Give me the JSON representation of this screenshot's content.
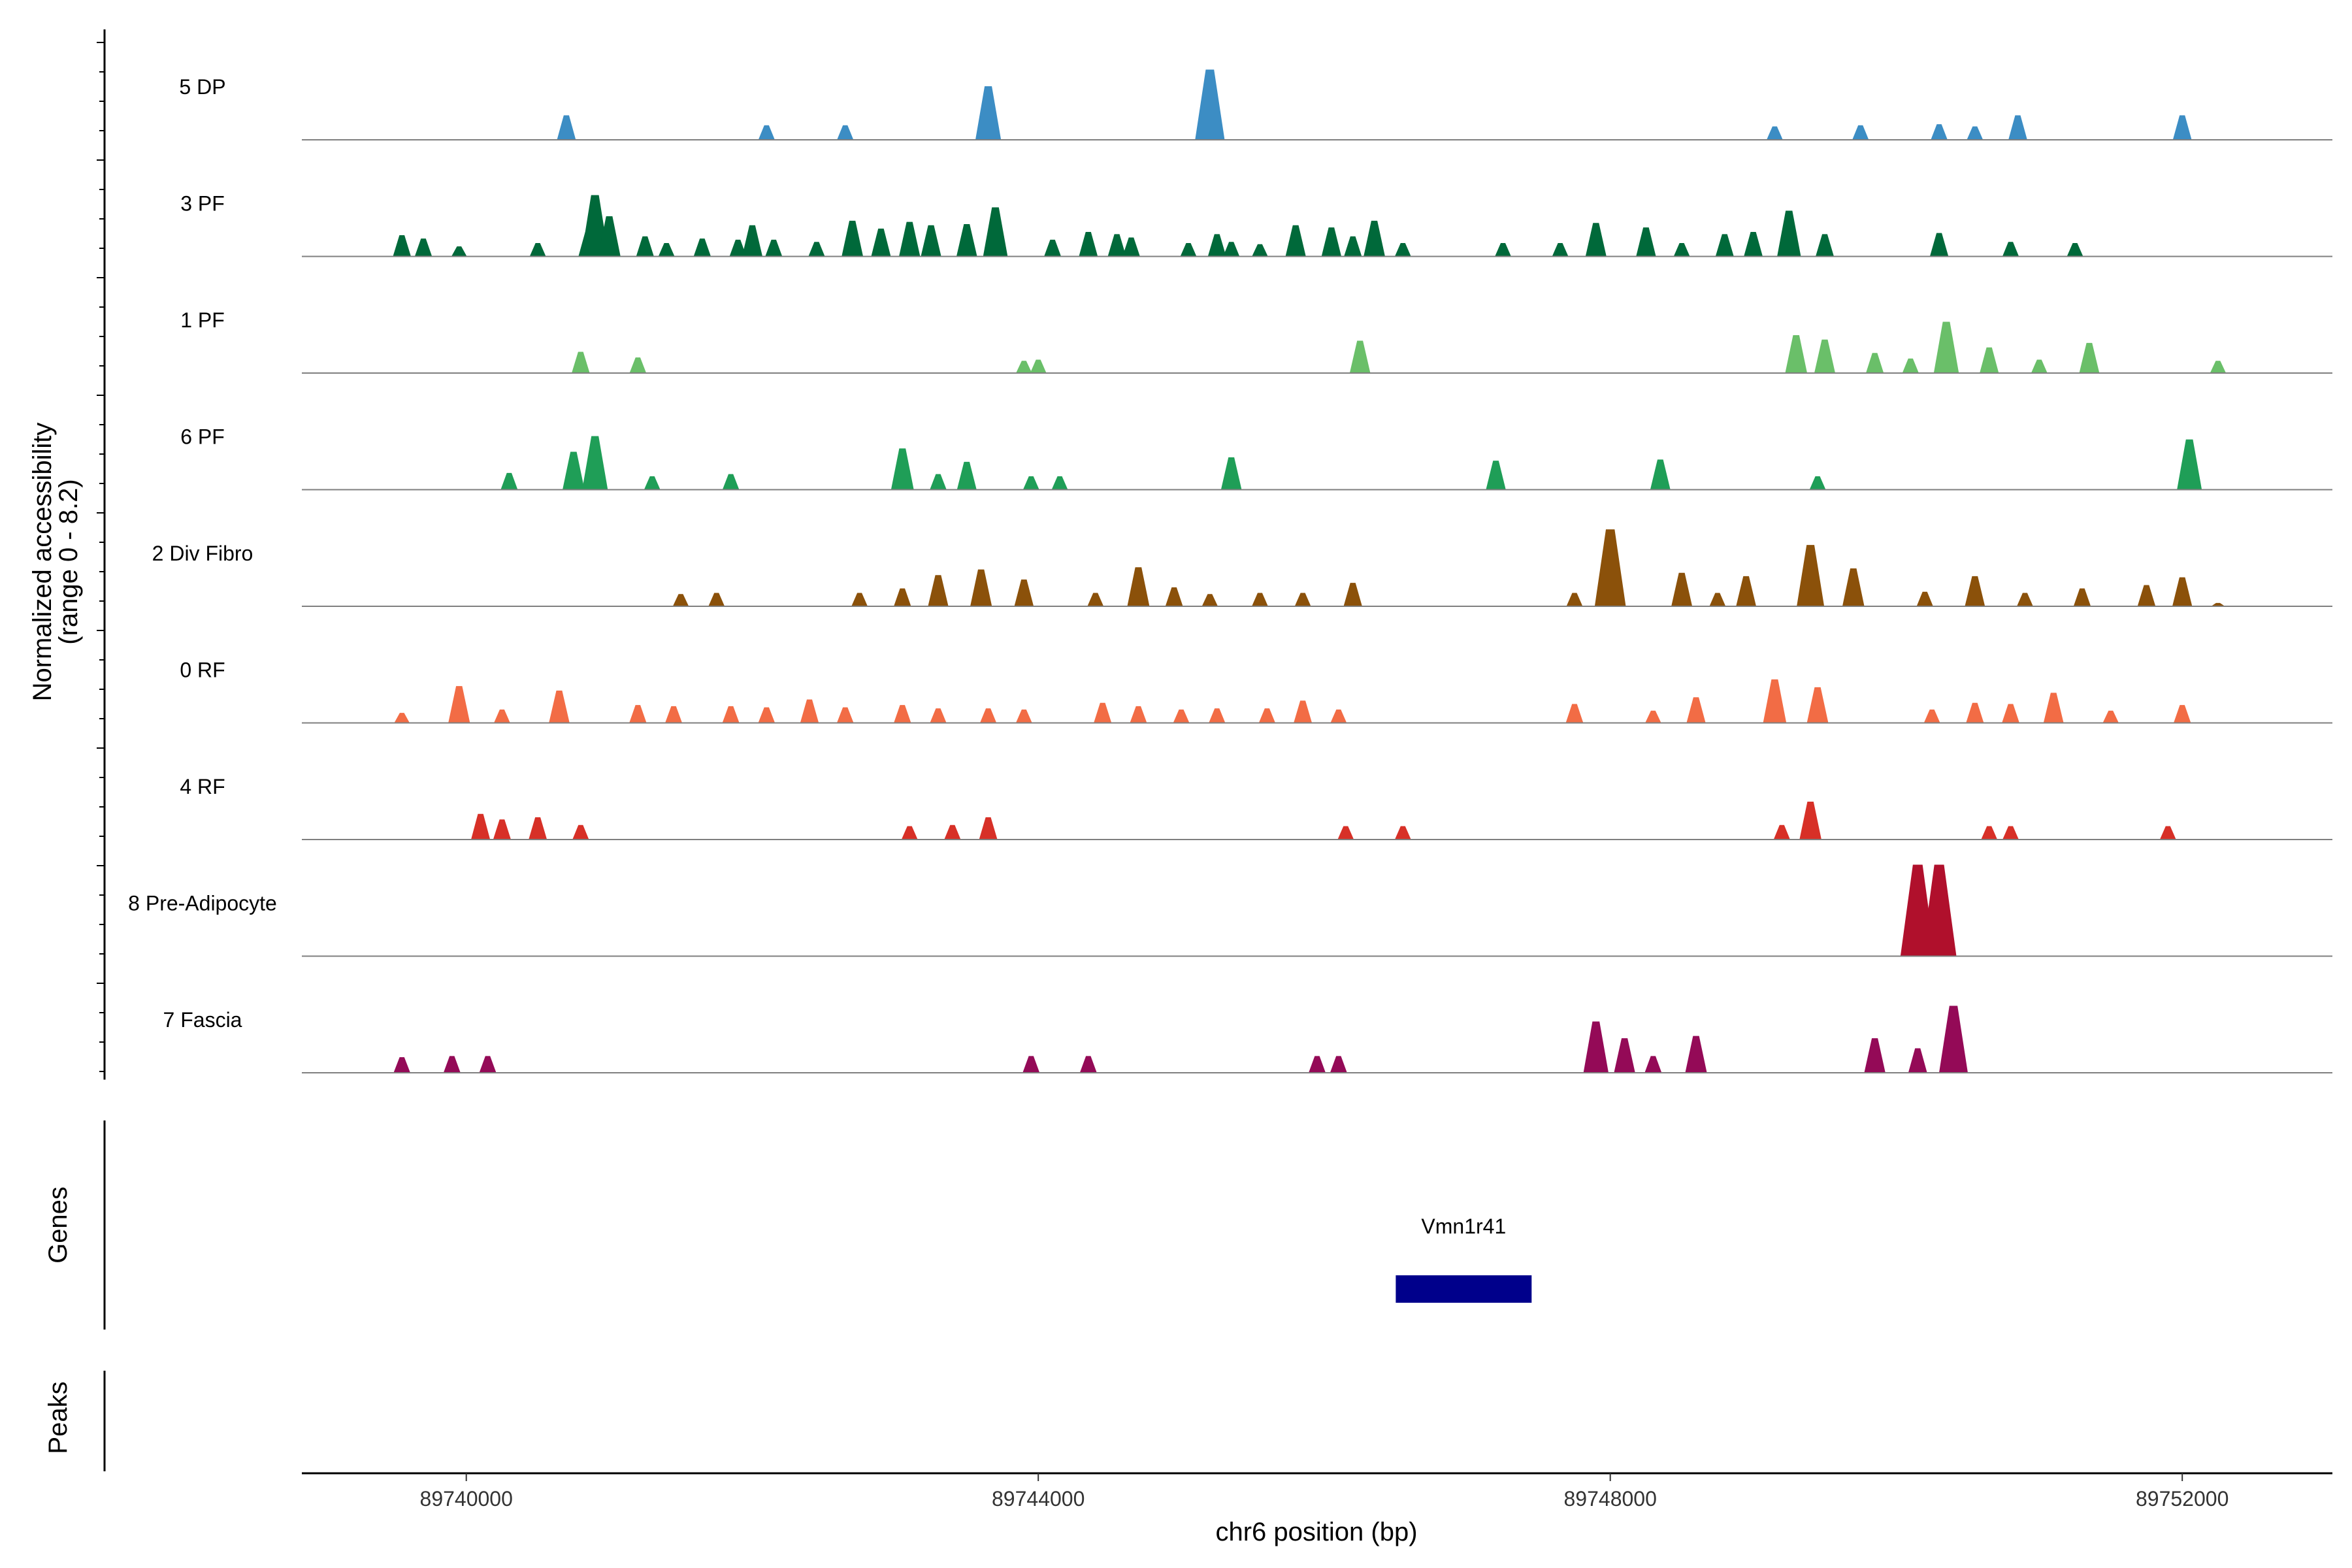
{
  "chart_data": {
    "type": "area",
    "title": "",
    "xlabel": "chr6 position (bp)",
    "ylabel": "Normalized accessibility",
    "ylabel_range": "(range 0 - 8.2)",
    "ylim": [
      0,
      8.2
    ],
    "xlim": [
      89738850,
      89753050
    ],
    "x_ticks": [
      89740000,
      89744000,
      89748000,
      89752000
    ],
    "x_tick_labels": [
      "89740000",
      "89744000",
      "89748000",
      "89752000"
    ],
    "tracks": [
      {
        "name": "5 DP",
        "color": "#3C8DC4",
        "peaks": [
          [
            89740700,
            2.2
          ],
          [
            89742100,
            1.3
          ],
          [
            89742650,
            1.3
          ],
          [
            89743650,
            4.8
          ],
          [
            89745200,
            6.3
          ],
          [
            89749150,
            1.2
          ],
          [
            89749750,
            1.3
          ],
          [
            89750300,
            1.4
          ],
          [
            89750550,
            1.2
          ],
          [
            89750850,
            2.2
          ],
          [
            89752000,
            2.2
          ]
        ]
      },
      {
        "name": "3 PF",
        "color": "#00693A",
        "peaks": [
          [
            89739550,
            1.9
          ],
          [
            89739700,
            1.6
          ],
          [
            89739950,
            0.9
          ],
          [
            89740500,
            1.2
          ],
          [
            89740850,
            2.2
          ],
          [
            89740900,
            5.5
          ],
          [
            89741000,
            3.6
          ],
          [
            89741250,
            1.8
          ],
          [
            89741400,
            1.2
          ],
          [
            89741650,
            1.6
          ],
          [
            89741900,
            1.5
          ],
          [
            89742000,
            2.8
          ],
          [
            89742150,
            1.5
          ],
          [
            89742450,
            1.3
          ],
          [
            89742700,
            3.2
          ],
          [
            89742900,
            2.5
          ],
          [
            89743100,
            3.1
          ],
          [
            89743250,
            2.8
          ],
          [
            89743500,
            2.9
          ],
          [
            89743700,
            4.4
          ],
          [
            89744100,
            1.5
          ],
          [
            89744350,
            2.2
          ],
          [
            89744550,
            2.0
          ],
          [
            89744650,
            1.7
          ],
          [
            89745050,
            1.2
          ],
          [
            89745250,
            2.0
          ],
          [
            89745350,
            1.3
          ],
          [
            89745550,
            1.1
          ],
          [
            89745800,
            2.8
          ],
          [
            89746050,
            2.6
          ],
          [
            89746200,
            1.8
          ],
          [
            89746350,
            3.2
          ],
          [
            89746550,
            1.2
          ],
          [
            89747250,
            1.2
          ],
          [
            89747650,
            1.2
          ],
          [
            89747900,
            3.0
          ],
          [
            89748250,
            2.6
          ],
          [
            89748500,
            1.2
          ],
          [
            89748800,
            2.0
          ],
          [
            89749000,
            2.2
          ],
          [
            89749250,
            4.1
          ],
          [
            89749500,
            2.0
          ],
          [
            89750300,
            2.1
          ],
          [
            89750800,
            1.3
          ],
          [
            89751250,
            1.2
          ]
        ]
      },
      {
        "name": "1 PF",
        "color": "#6ABF69",
        "peaks": [
          [
            89740800,
            1.9
          ],
          [
            89741200,
            1.4
          ],
          [
            89743900,
            1.1
          ],
          [
            89744000,
            1.2
          ],
          [
            89746250,
            2.9
          ],
          [
            89749300,
            3.4
          ],
          [
            89749500,
            3.0
          ],
          [
            89749850,
            1.8
          ],
          [
            89750100,
            1.3
          ],
          [
            89750350,
            4.6
          ],
          [
            89750650,
            2.3
          ],
          [
            89751000,
            1.2
          ],
          [
            89751350,
            2.7
          ],
          [
            89752250,
            1.1
          ]
        ]
      },
      {
        "name": "6 PF",
        "color": "#1F9E57",
        "peaks": [
          [
            89740300,
            1.5
          ],
          [
            89740750,
            3.4
          ],
          [
            89740900,
            4.8
          ],
          [
            89741300,
            1.2
          ],
          [
            89741850,
            1.4
          ],
          [
            89743050,
            3.7
          ],
          [
            89743300,
            1.4
          ],
          [
            89743500,
            2.5
          ],
          [
            89743950,
            1.2
          ],
          [
            89744150,
            1.2
          ],
          [
            89745350,
            2.9
          ],
          [
            89747200,
            2.6
          ],
          [
            89748350,
            2.7
          ],
          [
            89749450,
            1.2
          ],
          [
            89752050,
            4.5
          ]
        ]
      },
      {
        "name": "2 Div Fibro",
        "color": "#8B510A",
        "peaks": [
          [
            89741500,
            1.1
          ],
          [
            89741750,
            1.2
          ],
          [
            89742750,
            1.2
          ],
          [
            89743050,
            1.6
          ],
          [
            89743300,
            2.8
          ],
          [
            89743600,
            3.3
          ],
          [
            89743900,
            2.4
          ],
          [
            89744400,
            1.2
          ],
          [
            89744700,
            3.5
          ],
          [
            89744950,
            1.7
          ],
          [
            89745200,
            1.1
          ],
          [
            89745550,
            1.2
          ],
          [
            89745850,
            1.2
          ],
          [
            89746200,
            2.1
          ],
          [
            89747750,
            1.2
          ],
          [
            89748000,
            6.9
          ],
          [
            89748500,
            3.0
          ],
          [
            89748750,
            1.2
          ],
          [
            89748950,
            2.7
          ],
          [
            89749400,
            5.5
          ],
          [
            89749700,
            3.4
          ],
          [
            89750200,
            1.3
          ],
          [
            89750550,
            2.7
          ],
          [
            89750900,
            1.2
          ],
          [
            89751300,
            1.6
          ],
          [
            89751750,
            1.9
          ],
          [
            89752000,
            2.6
          ],
          [
            89752250,
            0.3
          ]
        ]
      },
      {
        "name": "0 RF",
        "color": "#F26C45",
        "peaks": [
          [
            89739550,
            0.9
          ],
          [
            89739950,
            3.3
          ],
          [
            89740250,
            1.2
          ],
          [
            89740650,
            2.9
          ],
          [
            89741200,
            1.6
          ],
          [
            89741450,
            1.5
          ],
          [
            89741850,
            1.5
          ],
          [
            89742100,
            1.4
          ],
          [
            89742400,
            2.1
          ],
          [
            89742650,
            1.4
          ],
          [
            89743050,
            1.6
          ],
          [
            89743300,
            1.3
          ],
          [
            89743650,
            1.3
          ],
          [
            89743900,
            1.2
          ],
          [
            89744450,
            1.8
          ],
          [
            89744700,
            1.5
          ],
          [
            89745000,
            1.2
          ],
          [
            89745250,
            1.3
          ],
          [
            89745600,
            1.3
          ],
          [
            89745850,
            2.0
          ],
          [
            89746100,
            1.2
          ],
          [
            89747750,
            1.7
          ],
          [
            89748300,
            1.1
          ],
          [
            89748600,
            2.3
          ],
          [
            89749150,
            3.9
          ],
          [
            89749450,
            3.2
          ],
          [
            89750250,
            1.2
          ],
          [
            89750550,
            1.8
          ],
          [
            89750800,
            1.7
          ],
          [
            89751100,
            2.7
          ],
          [
            89751500,
            1.1
          ],
          [
            89752000,
            1.6
          ]
        ]
      },
      {
        "name": "4 RF",
        "color": "#D73027",
        "peaks": [
          [
            89740100,
            2.3
          ],
          [
            89740250,
            1.8
          ],
          [
            89740500,
            2.0
          ],
          [
            89740800,
            1.3
          ],
          [
            89743100,
            1.2
          ],
          [
            89743400,
            1.3
          ],
          [
            89743650,
            2.0
          ],
          [
            89746150,
            1.2
          ],
          [
            89746550,
            1.2
          ],
          [
            89749200,
            1.3
          ],
          [
            89749400,
            3.4
          ],
          [
            89750650,
            1.2
          ],
          [
            89750800,
            1.2
          ],
          [
            89751900,
            1.2
          ]
        ]
      },
      {
        "name": "8 Pre-Adipocyte",
        "color": "#B0102C",
        "peaks": [
          [
            89750150,
            8.2
          ],
          [
            89750300,
            8.2
          ]
        ]
      },
      {
        "name": "7 Fascia",
        "color": "#940A57",
        "peaks": [
          [
            89739550,
            1.4
          ],
          [
            89739900,
            1.5
          ],
          [
            89740150,
            1.5
          ],
          [
            89743950,
            1.5
          ],
          [
            89744350,
            1.5
          ],
          [
            89745950,
            1.5
          ],
          [
            89746100,
            1.5
          ],
          [
            89747900,
            4.6
          ],
          [
            89748100,
            3.1
          ],
          [
            89748300,
            1.5
          ],
          [
            89748600,
            3.3
          ],
          [
            89749850,
            3.1
          ],
          [
            89750150,
            2.2
          ],
          [
            89750400,
            6.0
          ]
        ]
      }
    ],
    "genes": [
      {
        "name": "Vmn1r41",
        "start": 89746500,
        "end": 89747450,
        "color": "#00008B"
      }
    ],
    "panel_labels": {
      "genes": "Genes",
      "peaks": "Peaks"
    }
  }
}
